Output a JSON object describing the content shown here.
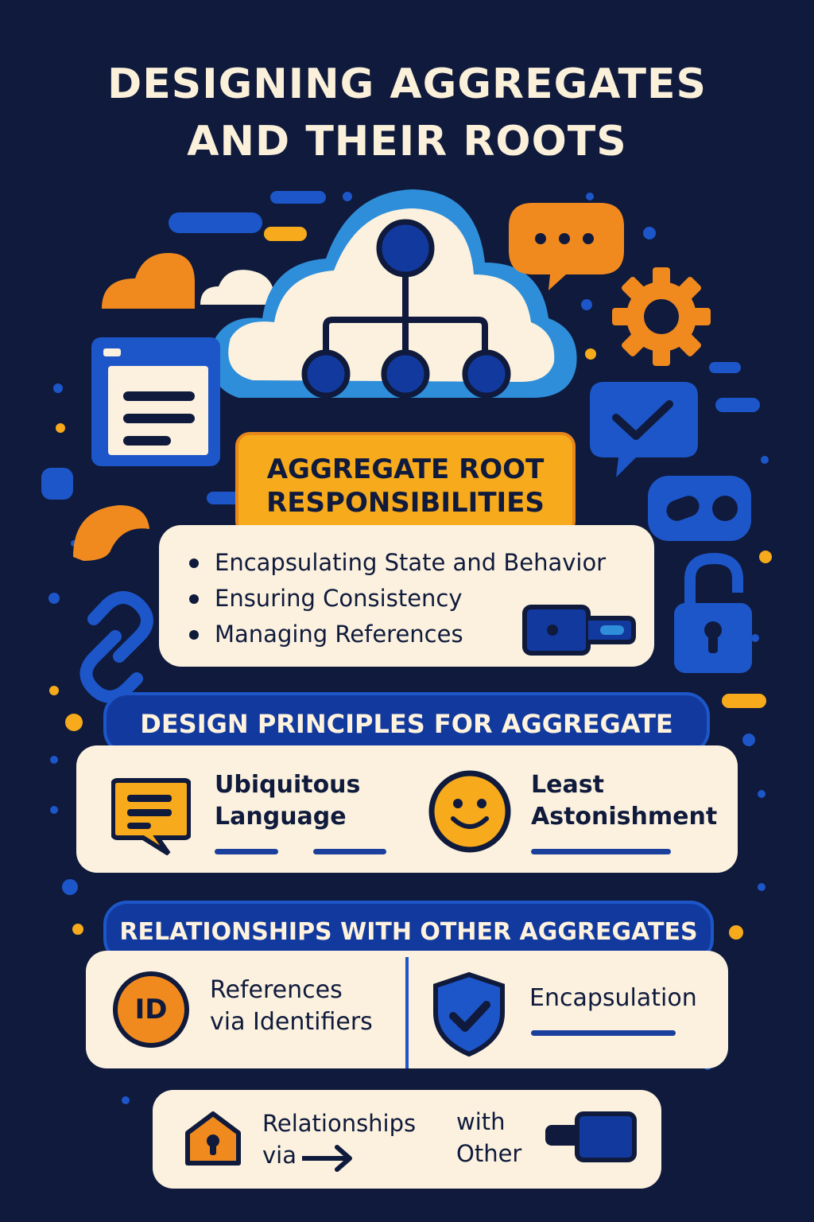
{
  "title": {
    "line1": "DESIGNING AGGREGATES",
    "line2": "AND THEIR ROOTS"
  },
  "root_section": {
    "heading_line1": "AGGREGATE ROOT",
    "heading_line2": "RESPONSIBILITIES",
    "items": [
      "Encapsulating State and Behavior",
      "Ensuring Consistency",
      "Managing References"
    ]
  },
  "principles_section": {
    "heading": "DESIGN PRINCIPLES FOR AGGREGATE",
    "cards": [
      {
        "line1": "Ubiquitous",
        "line2": "Language",
        "icon": "speech-list-icon"
      },
      {
        "line1": "Least",
        "line2": "Astonishment",
        "icon": "smiley-icon"
      }
    ]
  },
  "relationships_section": {
    "heading": "RELATIONSHIPS WITH OTHER AGGREGATES",
    "cards": [
      {
        "line1": "References",
        "line2": "via Identifiers",
        "icon_text": "ID"
      },
      {
        "line1": "Encapsulation",
        "icon": "shield-check-icon"
      }
    ]
  },
  "bottom_card": {
    "text1_line1": "Relationships",
    "text1_line2": "via",
    "text2_line1": "with",
    "text2_line2": "Other"
  },
  "colors": {
    "background": "#0f1a3c",
    "cream": "#fbf1de",
    "orange": "#f6aa1c",
    "blue": "#1d56c9",
    "navy": "#123a9e"
  }
}
